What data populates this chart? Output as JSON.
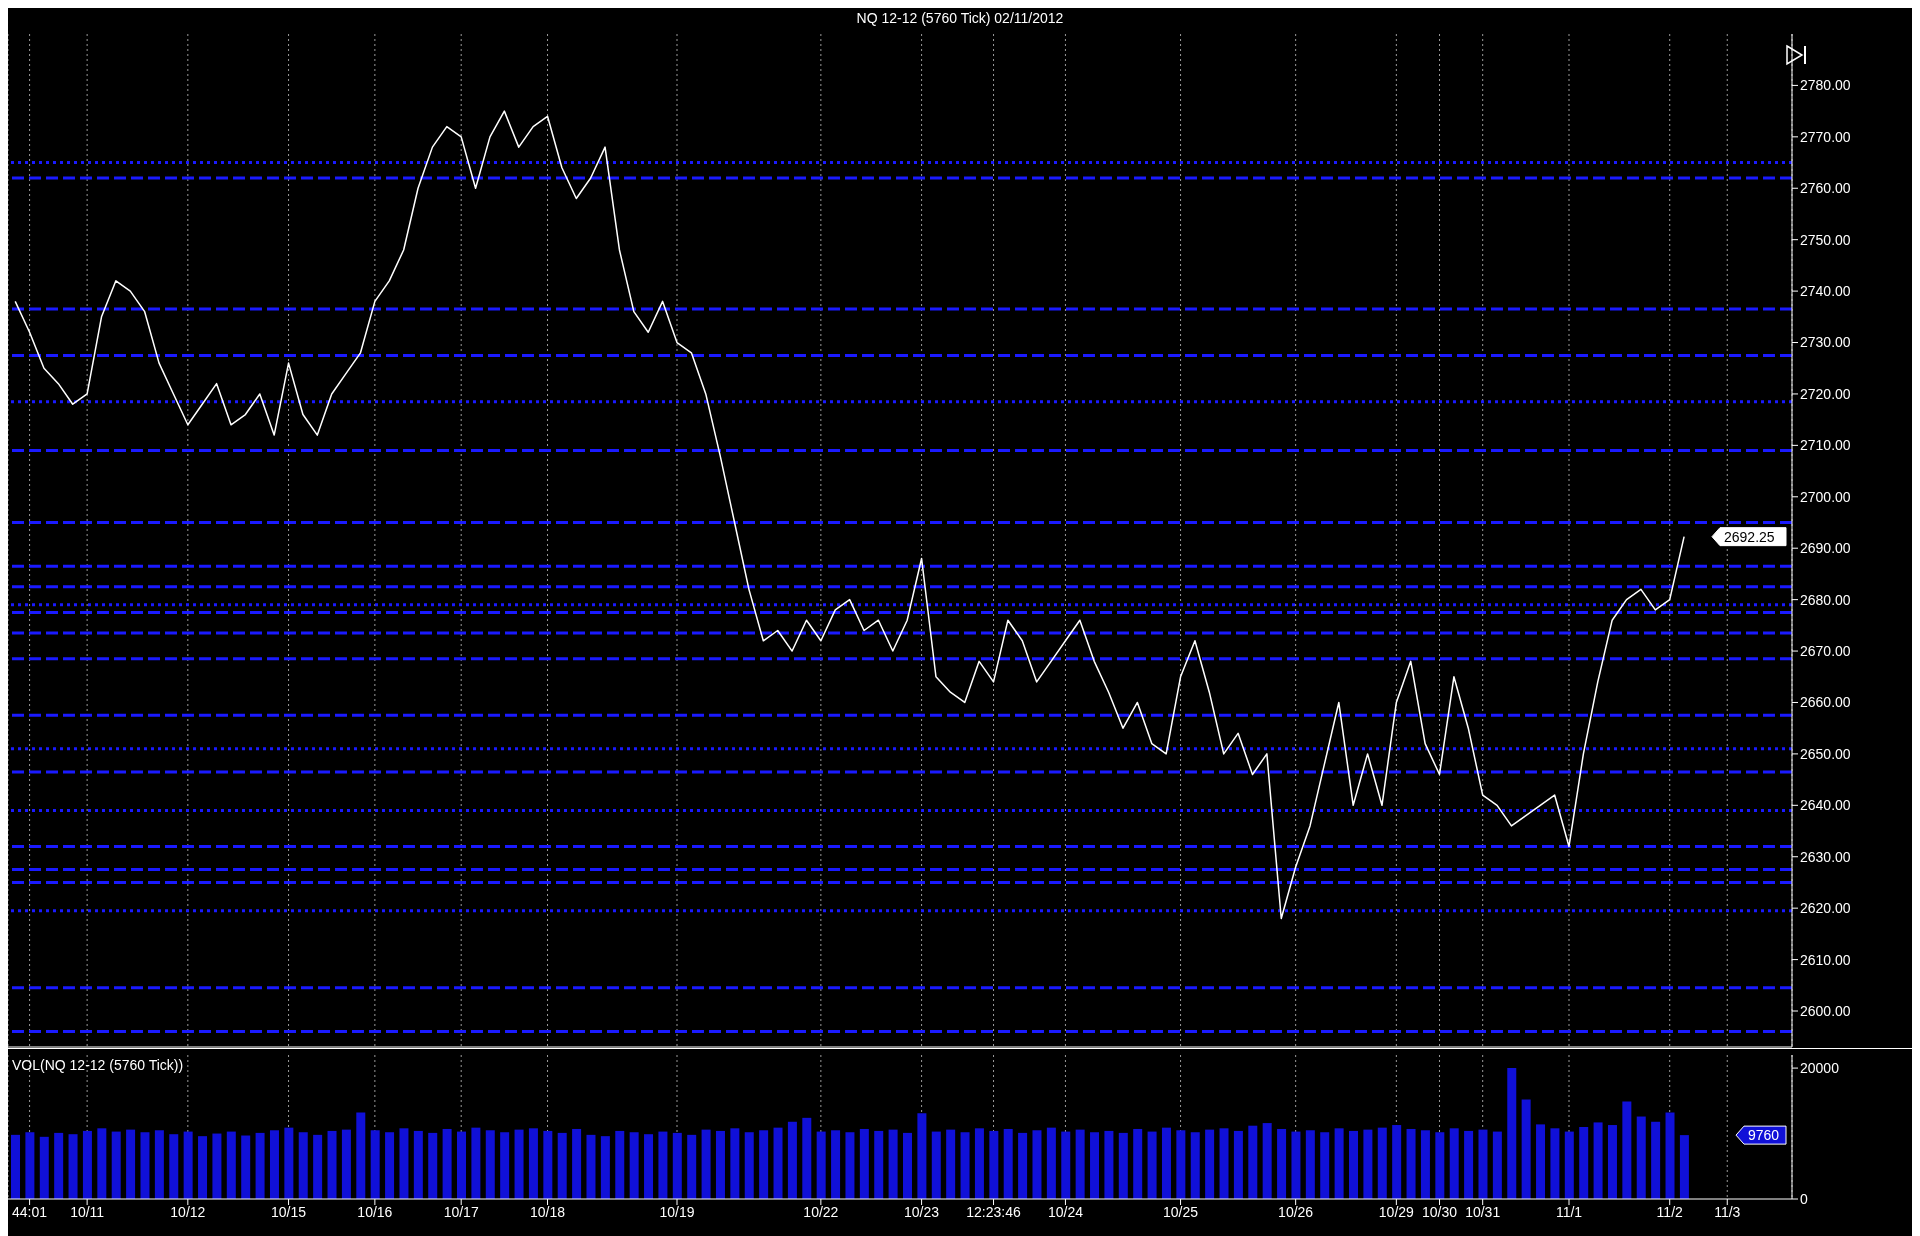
{
  "chart_data": [
    {
      "type": "line",
      "title": "NQ 12-12 (5760 Tick)  02/11/2012",
      "categories": [
        null,
        null,
        null,
        null,
        null,
        null,
        null,
        null,
        null,
        null,
        null,
        null,
        null,
        null,
        null,
        null,
        null,
        null,
        null,
        null,
        null,
        null,
        null,
        null,
        null,
        null,
        null,
        null,
        null,
        null,
        null,
        null,
        null,
        null,
        null,
        null,
        null,
        null,
        null,
        null,
        null,
        null,
        null,
        null,
        null,
        null,
        null,
        null,
        null,
        null,
        null,
        null,
        null,
        null,
        null,
        null,
        null,
        null,
        null,
        null,
        null,
        null,
        null,
        null,
        null,
        null,
        null,
        null,
        null,
        null,
        null,
        null,
        null,
        null,
        null,
        null,
        null,
        null,
        null,
        null,
        null,
        null,
        null,
        null,
        null,
        null,
        null,
        null,
        null,
        null,
        null,
        null,
        null,
        null,
        null,
        null,
        null,
        null,
        null,
        null,
        null,
        null,
        null,
        null,
        null,
        null,
        null,
        null,
        null,
        null,
        null,
        null,
        null,
        null,
        null,
        null,
        null,
        null,
        null,
        null,
        null,
        null,
        null,
        null
      ],
      "series": [
        {
          "color": "#ffffff",
          "values": [
            2738,
            2732,
            2725,
            2722,
            2718,
            2720,
            2735,
            2742,
            2740,
            2736,
            2726,
            2720,
            2714,
            2718,
            2722,
            2714,
            2716,
            2720,
            2712,
            2726,
            2716,
            2712,
            2720,
            2724,
            2728,
            2738,
            2742,
            2748,
            2760,
            2768,
            2772,
            2770,
            2760,
            2770,
            2775,
            2768,
            2772,
            2774,
            2764,
            2758,
            2762,
            2768,
            2748,
            2736,
            2732,
            2738,
            2730,
            2728,
            2720,
            2708,
            2695,
            2682,
            2672,
            2674,
            2670,
            2676,
            2672,
            2678,
            2680,
            2674,
            2676,
            2670,
            2676,
            2688,
            2665,
            2662,
            2660,
            2668,
            2664,
            2676,
            2672,
            2664,
            2668,
            2672,
            2676,
            2668,
            2662,
            2655,
            2660,
            2652,
            2650,
            2665,
            2672,
            2662,
            2650,
            2654,
            2646,
            2650,
            2618,
            2628,
            2636,
            2648,
            2660,
            2640,
            2650,
            2640,
            2660,
            2668,
            2652,
            2646,
            2665,
            2655,
            2642,
            2640,
            2636,
            2638,
            2640,
            2642,
            2632,
            2650,
            2664,
            2676,
            2680,
            2682,
            2678,
            2680,
            2692.25,
            null,
            null,
            null,
            null,
            null,
            null,
            null
          ]
        }
      ],
      "ylim": [
        2593,
        2790
      ],
      "yticks": [
        {
          "value": 2600,
          "label": "2600.00"
        },
        {
          "value": 2610,
          "label": "2610.00"
        },
        {
          "value": 2620,
          "label": "2620.00"
        },
        {
          "value": 2630,
          "label": "2630.00"
        },
        {
          "value": 2640,
          "label": "2640.00"
        },
        {
          "value": 2650,
          "label": "2650.00"
        },
        {
          "value": 2660,
          "label": "2660.00"
        },
        {
          "value": 2670,
          "label": "2670.00"
        },
        {
          "value": 2680,
          "label": "2680.00"
        },
        {
          "value": 2690,
          "label": "2690.00"
        },
        {
          "value": 2700,
          "label": "2700.00"
        },
        {
          "value": 2710,
          "label": "2710.00"
        },
        {
          "value": 2720,
          "label": "2720.00"
        },
        {
          "value": 2730,
          "label": "2730.00"
        },
        {
          "value": 2740,
          "label": "2740.00"
        },
        {
          "value": 2750,
          "label": "2750.00"
        },
        {
          "value": 2760,
          "label": "2760.00"
        },
        {
          "value": 2770,
          "label": "2770.00"
        },
        {
          "value": 2780,
          "label": "2780.00"
        }
      ],
      "ref_lines": [
        {
          "axis": "y",
          "value": 2765,
          "color": "#1a1aff",
          "line_style": "dotted"
        },
        {
          "axis": "y",
          "value": 2762,
          "color": "#1a1aff",
          "line_style": "dashed"
        },
        {
          "axis": "y",
          "value": 2736.5,
          "color": "#1a1aff",
          "line_style": "dashed"
        },
        {
          "axis": "y",
          "value": 2727.5,
          "color": "#1a1aff",
          "line_style": "dashed"
        },
        {
          "axis": "y",
          "value": 2718.5,
          "color": "#1a1aff",
          "line_style": "dotted"
        },
        {
          "axis": "y",
          "value": 2709,
          "color": "#1a1aff",
          "line_style": "dashed"
        },
        {
          "axis": "y",
          "value": 2695,
          "color": "#1a1aff",
          "line_style": "dashed"
        },
        {
          "axis": "y",
          "value": 2686.5,
          "color": "#1a1aff",
          "line_style": "dashed"
        },
        {
          "axis": "y",
          "value": 2682.5,
          "color": "#1a1aff",
          "line_style": "dashed"
        },
        {
          "axis": "y",
          "value": 2679,
          "color": "#1a1aff",
          "line_style": "dotted"
        },
        {
          "axis": "y",
          "value": 2677.5,
          "color": "#1a1aff",
          "line_style": "dashed"
        },
        {
          "axis": "y",
          "value": 2673.5,
          "color": "#1a1aff",
          "line_style": "dashed"
        },
        {
          "axis": "y",
          "value": 2668.5,
          "color": "#1a1aff",
          "line_style": "dashed"
        },
        {
          "axis": "y",
          "value": 2657.5,
          "color": "#1a1aff",
          "line_style": "dashed"
        },
        {
          "axis": "y",
          "value": 2651,
          "color": "#1a1aff",
          "line_style": "dotted"
        },
        {
          "axis": "y",
          "value": 2646.5,
          "color": "#1a1aff",
          "line_style": "dashed"
        },
        {
          "axis": "y",
          "value": 2639,
          "color": "#1a1aff",
          "line_style": "dotted"
        },
        {
          "axis": "y",
          "value": 2632,
          "color": "#1a1aff",
          "line_style": "dashed"
        },
        {
          "axis": "y",
          "value": 2627.5,
          "color": "#1a1aff",
          "line_style": "dashed"
        },
        {
          "axis": "y",
          "value": 2625,
          "color": "#1a1aff",
          "line_style": "dashed"
        },
        {
          "axis": "y",
          "value": 2619.5,
          "color": "#1a1aff",
          "line_style": "dotted"
        },
        {
          "axis": "y",
          "value": 2604.5,
          "color": "#1a1aff",
          "line_style": "dashed"
        },
        {
          "axis": "y",
          "value": 2596,
          "color": "#1a1aff",
          "line_style": "dashed"
        }
      ],
      "annotations": [
        "2692.25"
      ],
      "grid": "x",
      "tick_labels": "y"
    },
    {
      "type": "bar",
      "title": "VOL(NQ 12-12 (5760 Tick))",
      "categories": [
        null,
        "44:01",
        null,
        null,
        null,
        "10/11",
        null,
        null,
        null,
        null,
        null,
        null,
        "10/12",
        null,
        null,
        null,
        null,
        null,
        null,
        "10/15",
        null,
        null,
        null,
        null,
        null,
        "10/16",
        null,
        null,
        null,
        null,
        null,
        "10/17",
        null,
        null,
        null,
        null,
        null,
        "10/18",
        null,
        null,
        null,
        null,
        null,
        null,
        null,
        null,
        "10/19",
        null,
        null,
        null,
        null,
        null,
        null,
        null,
        null,
        null,
        "10/22",
        null,
        null,
        null,
        null,
        null,
        null,
        "10/23",
        null,
        null,
        null,
        null,
        "12:23:46",
        null,
        null,
        null,
        null,
        "10/24",
        null,
        null,
        null,
        null,
        null,
        null,
        null,
        "10/25",
        null,
        null,
        null,
        null,
        null,
        null,
        null,
        "10/26",
        null,
        null,
        null,
        null,
        null,
        null,
        "10/29",
        null,
        null,
        "10/30",
        null,
        null,
        "10/31",
        null,
        null,
        null,
        null,
        null,
        "11/1",
        null,
        null,
        null,
        null,
        null,
        null,
        "11/2",
        null,
        null,
        null,
        "11/3",
        null,
        null,
        null,
        null
      ],
      "series": [
        {
          "color": "#1010d8",
          "values": [
            9800,
            10200,
            9500,
            10100,
            9900,
            10400,
            10800,
            10300,
            10600,
            10200,
            10500,
            9900,
            10300,
            9600,
            10000,
            10300,
            9700,
            10100,
            10500,
            10900,
            10200,
            9800,
            10400,
            10600,
            13200,
            10500,
            10200,
            10800,
            10400,
            10100,
            10700,
            10300,
            10900,
            10500,
            10200,
            10600,
            10800,
            10400,
            10100,
            10700,
            9800,
            9600,
            10400,
            10200,
            9900,
            10300,
            10100,
            9800,
            10600,
            10400,
            10800,
            10200,
            10500,
            10900,
            11800,
            12400,
            10300,
            10500,
            10200,
            10700,
            10400,
            10600,
            10100,
            13100,
            10300,
            10600,
            10200,
            10800,
            10400,
            10700,
            10100,
            10500,
            10900,
            10300,
            10600,
            10200,
            10400,
            10100,
            10700,
            10300,
            10900,
            10500,
            10200,
            10600,
            10800,
            10400,
            11200,
            11600,
            10700,
            10300,
            10500,
            10200,
            10800,
            10400,
            10600,
            10900,
            11300,
            10700,
            10500,
            10200,
            10800,
            10400,
            10600,
            10300,
            20000,
            15200,
            11400,
            10800,
            10300,
            11000,
            11700,
            11300,
            14900,
            12600,
            11800,
            13200,
            9760,
            null,
            null,
            null,
            null,
            null,
            null,
            null
          ]
        }
      ],
      "ylim": [
        0,
        22000
      ],
      "yticks": [
        0,
        20000
      ],
      "annotations": [
        "9760"
      ],
      "grid": "x"
    }
  ]
}
